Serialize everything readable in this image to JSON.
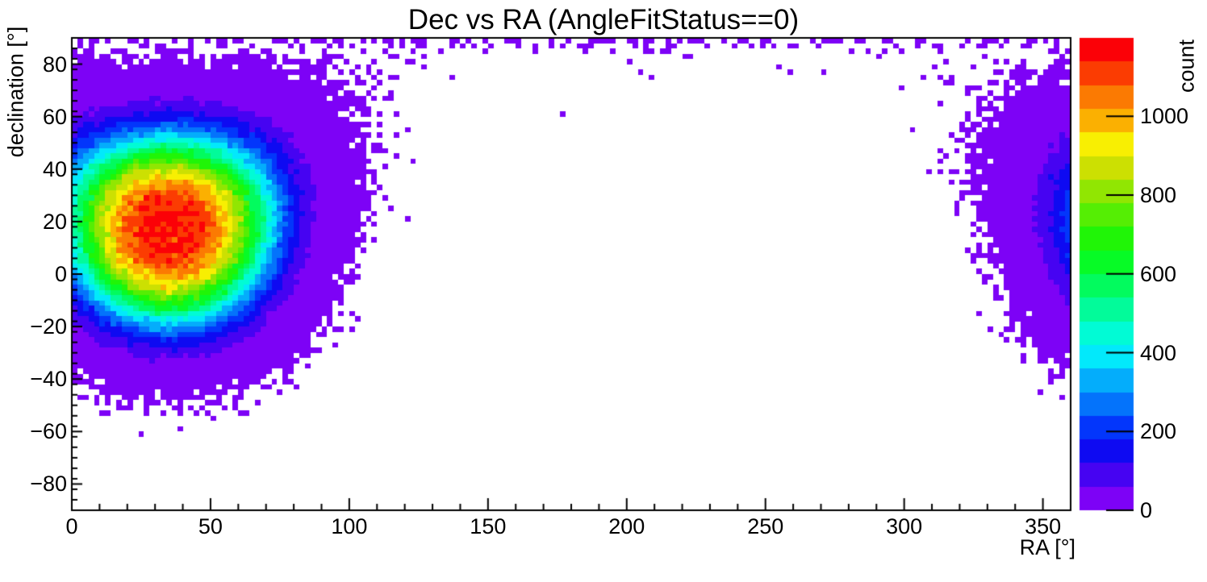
{
  "title": "Dec vs RA (AngleFitStatus==0)",
  "chart_data": {
    "type": "heatmap",
    "title": "Dec vs RA (AngleFitStatus==0)",
    "xlabel": "RA [°]",
    "ylabel": "declination [°]",
    "zlabel": "count",
    "x_range": [
      0,
      360
    ],
    "y_range": [
      -90,
      90
    ],
    "z_range": [
      0,
      1199
    ],
    "grid": false,
    "bins_x": 180,
    "bins_y": 90,
    "bin_width_deg": 2,
    "x_major_ticks": [
      0,
      50,
      100,
      150,
      200,
      250,
      300,
      350
    ],
    "x_tick_labels": [
      "0",
      "50",
      "100",
      "150",
      "200",
      "250",
      "300",
      "350"
    ],
    "x_minor_step": 10,
    "y_major_ticks": [
      80,
      60,
      40,
      20,
      0,
      -20,
      -40,
      -60,
      -80
    ],
    "y_tick_labels": [
      "80",
      "60",
      "40",
      "20",
      "0",
      "−20",
      "−40",
      "−60",
      "−80"
    ],
    "y_minor_step": 4,
    "z_major_ticks": [
      0,
      200,
      400,
      600,
      800,
      1000
    ],
    "z_tick_labels": [
      "0",
      "200",
      "400",
      "600",
      "800",
      "1000"
    ],
    "n_contours": 20,
    "palette": [
      "#7d02f6",
      "#4603f2",
      "#0e0af2",
      "#0336fb",
      "#0473fb",
      "#04adfb",
      "#02e9fb",
      "#01fbd5",
      "#02fb9a",
      "#02fb5e",
      "#07fb26",
      "#20f507",
      "#55ee04",
      "#91e602",
      "#cce002",
      "#f8ef02",
      "#fbb001",
      "#fb7a02",
      "#fb3c02",
      "#fb0107"
    ],
    "distribution": {
      "model": "poisson-sampled spherical blob + polar band",
      "peak_ra_deg": 35,
      "peak_dec_deg": 17,
      "peak_count": 1160,
      "radial_scale_deg": 34.3,
      "radial_power": 3,
      "wraparound_ra": true,
      "wrap_attenuation": 0.5,
      "polar_band_amplitude": 0.55,
      "polar_band_scale_deg": 3.5,
      "seed": 20240042
    }
  }
}
